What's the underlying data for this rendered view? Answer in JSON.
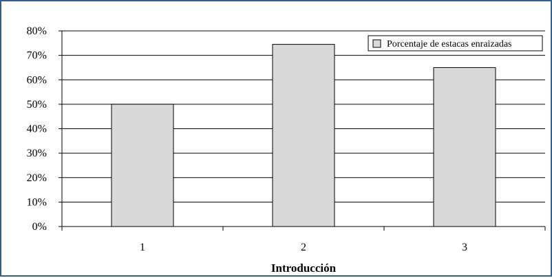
{
  "chart_data": {
    "type": "bar",
    "categories": [
      "1",
      "2",
      "3"
    ],
    "series": [
      {
        "name": "Porcentaje de estacas enraizadas",
        "values": [
          0.5,
          0.745,
          0.65
        ]
      }
    ],
    "xlabel": "Introducción",
    "ylabel": "",
    "ylim": [
      0,
      0.8
    ],
    "yticks": [
      "0%",
      "10%",
      "20%",
      "30%",
      "40%",
      "50%",
      "60%",
      "70%",
      "80%"
    ],
    "grid": true,
    "legend_position": "top-right",
    "bar_color": "#d9d9d9",
    "bar_edge_color": "#000000"
  }
}
